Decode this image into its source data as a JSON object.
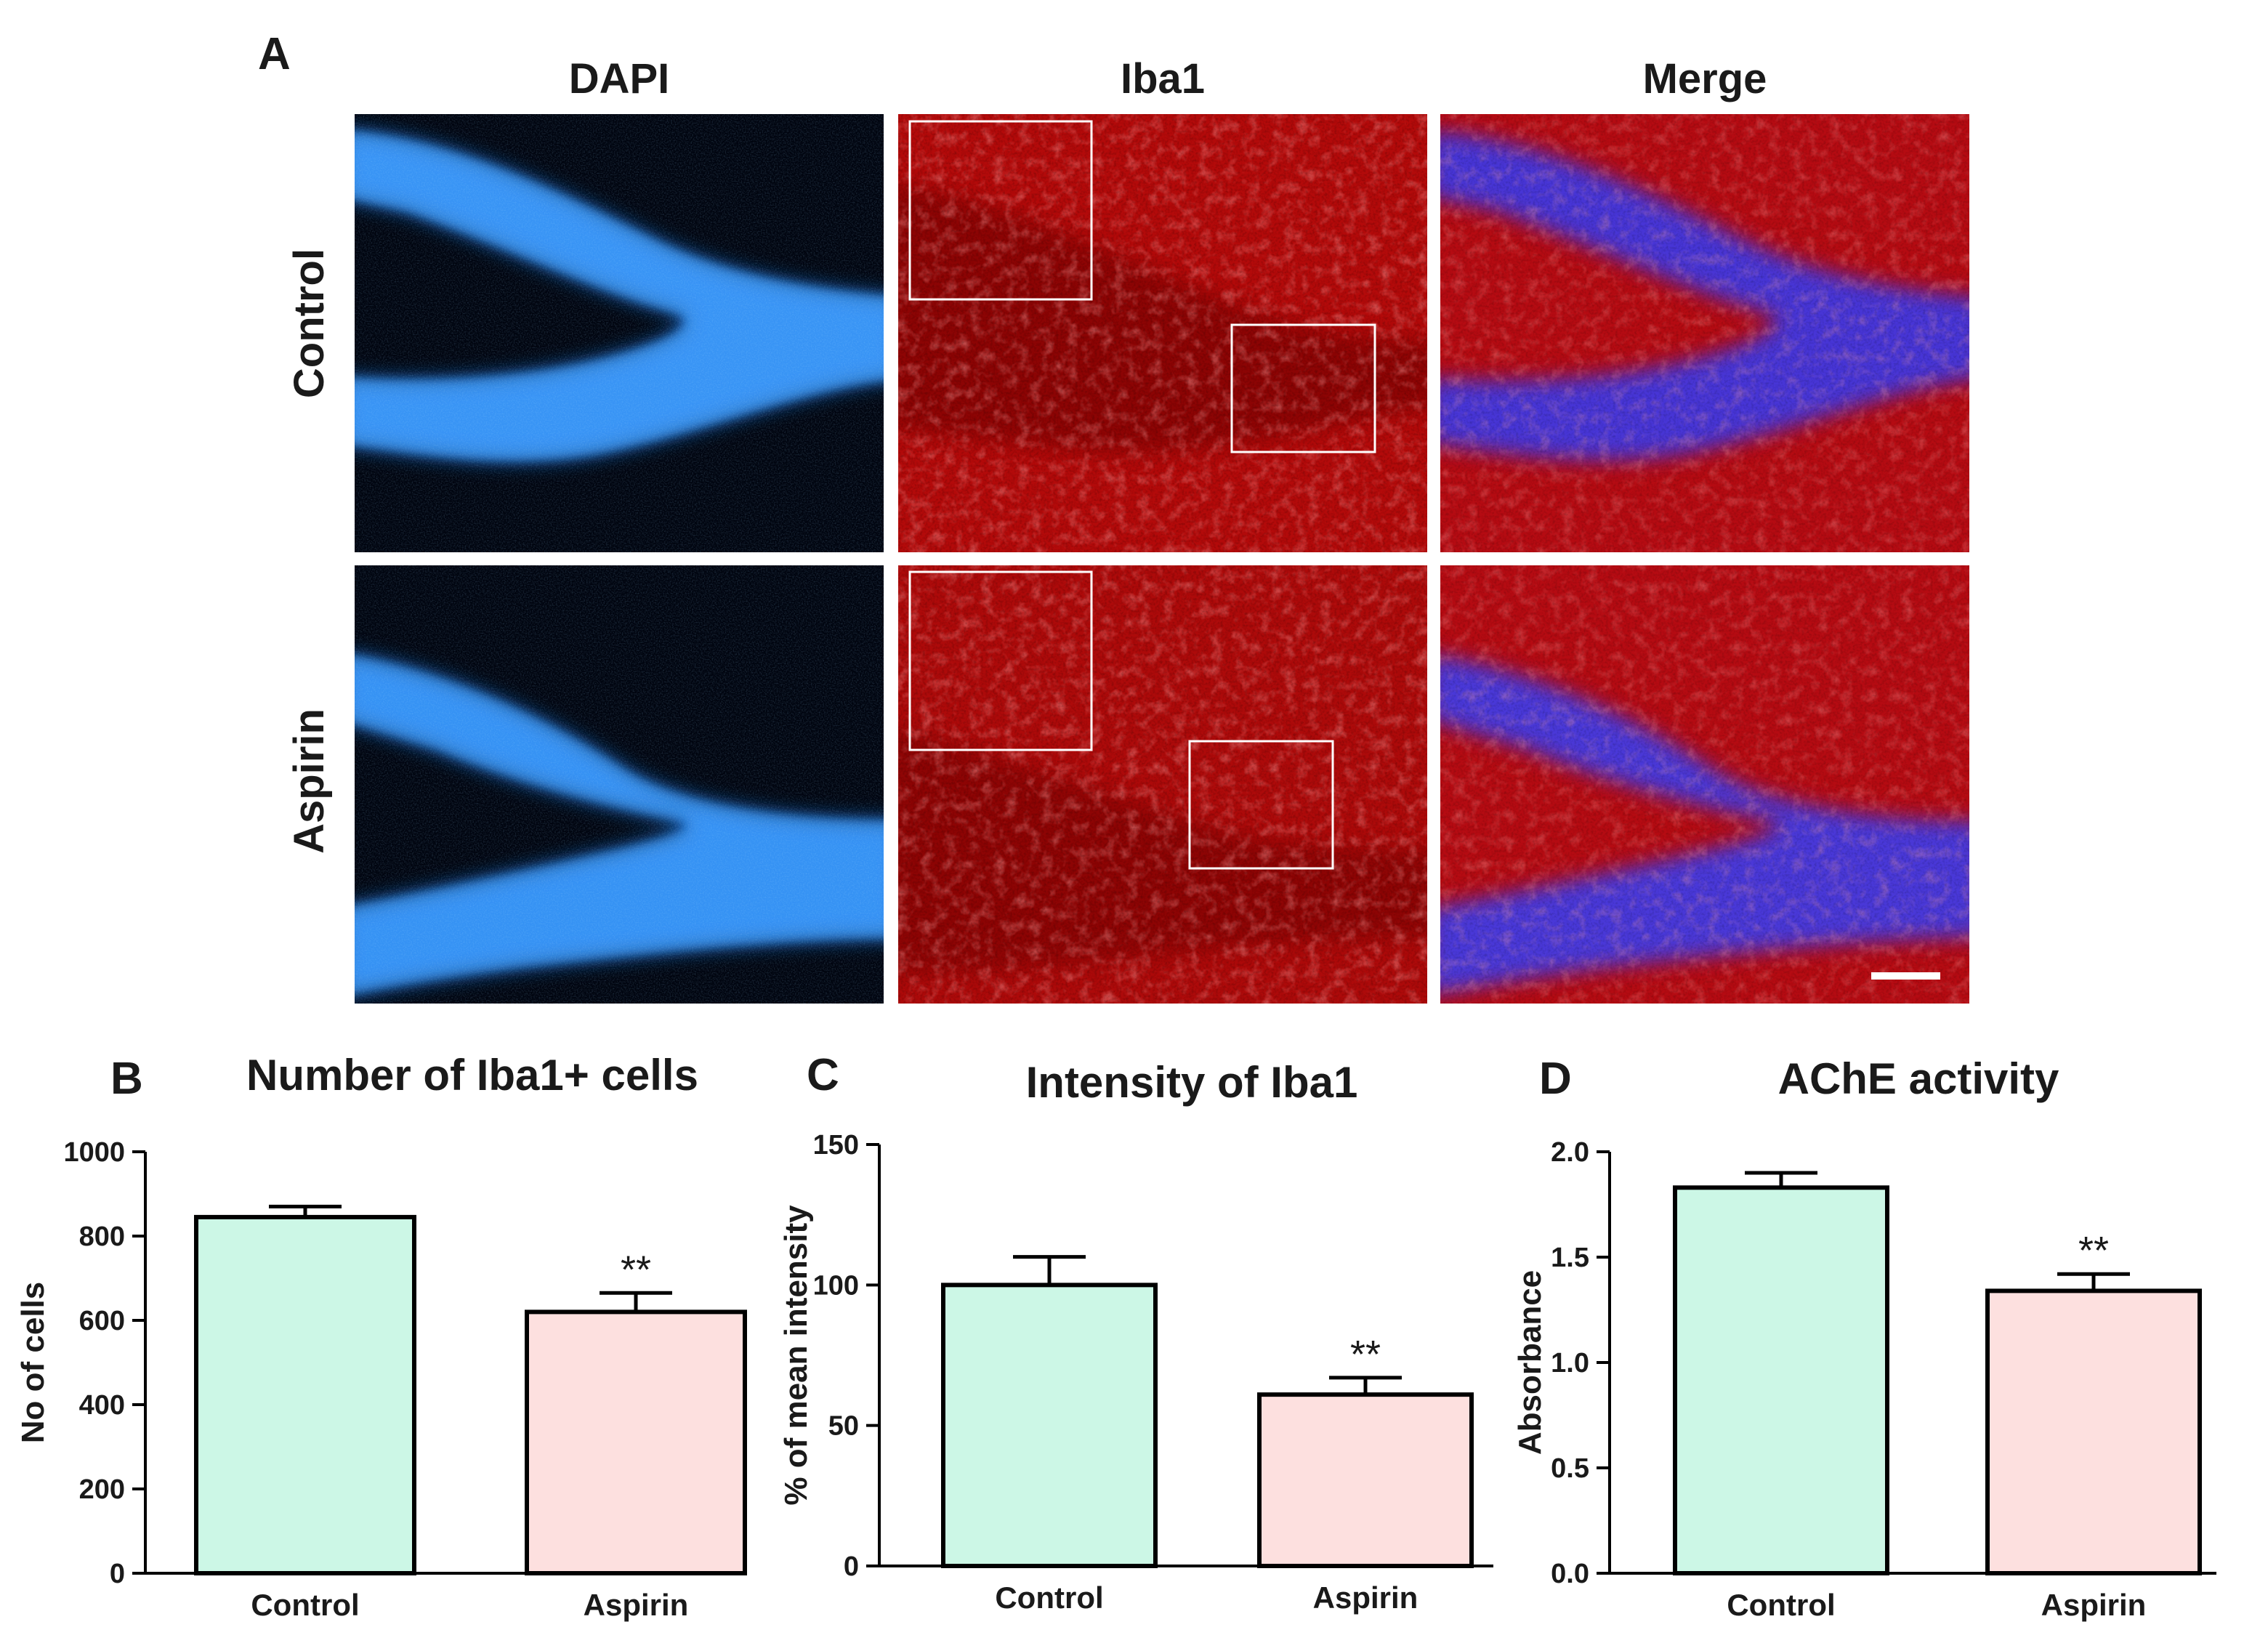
{
  "panel_a": {
    "label": "A",
    "columns": [
      "DAPI",
      "Iba1",
      "Merge"
    ],
    "rows": [
      "Control",
      "Aspirin"
    ],
    "colors": {
      "dapi": "#1e6fe0",
      "iba1": "#d21010",
      "merge_blue": "#4a3bd8",
      "background": "#000000"
    }
  },
  "chart_data": [
    {
      "type": "bar",
      "panel": "B",
      "title": "Number of  Iba1+ cells",
      "xlabel": "",
      "ylabel": "No of cells",
      "categories": [
        "Control",
        "Aspirin"
      ],
      "values": [
        845,
        620
      ],
      "errors": [
        25,
        45
      ],
      "significance": [
        "",
        "**"
      ],
      "ylim": [
        0,
        1000
      ],
      "yticks": [
        "0",
        "200",
        "400",
        "600",
        "800",
        "1000"
      ],
      "ytick_values": [
        0,
        200,
        400,
        600,
        800,
        1000
      ],
      "grid": false,
      "colors": [
        "#ccf7e6",
        "#fde0df"
      ]
    },
    {
      "type": "bar",
      "panel": "C",
      "title": "Intensity of Iba1",
      "xlabel": "",
      "ylabel": "% of mean intensity",
      "categories": [
        "Control",
        "Aspirin"
      ],
      "values": [
        100,
        61
      ],
      "errors": [
        10,
        6
      ],
      "significance": [
        "",
        "**"
      ],
      "ylim": [
        0,
        150
      ],
      "yticks": [
        "0",
        "50",
        "100",
        "150"
      ],
      "ytick_values": [
        0,
        50,
        100,
        150
      ],
      "grid": false,
      "colors": [
        "#ccf7e6",
        "#fde0df"
      ]
    },
    {
      "type": "bar",
      "panel": "D",
      "title": "AChE activity",
      "xlabel": "",
      "ylabel": "Absorbance",
      "categories": [
        "Control",
        "Aspirin"
      ],
      "values": [
        1.83,
        1.34
      ],
      "errors": [
        0.07,
        0.08
      ],
      "significance": [
        "",
        "**"
      ],
      "ylim": [
        0,
        2
      ],
      "yticks": [
        "0.0",
        "0.5",
        "1.0",
        "1.5",
        "2.0"
      ],
      "ytick_values": [
        0,
        0.5,
        1.0,
        1.5,
        2.0
      ],
      "grid": false,
      "colors": [
        "#ccf7e6",
        "#fde0df"
      ]
    }
  ]
}
